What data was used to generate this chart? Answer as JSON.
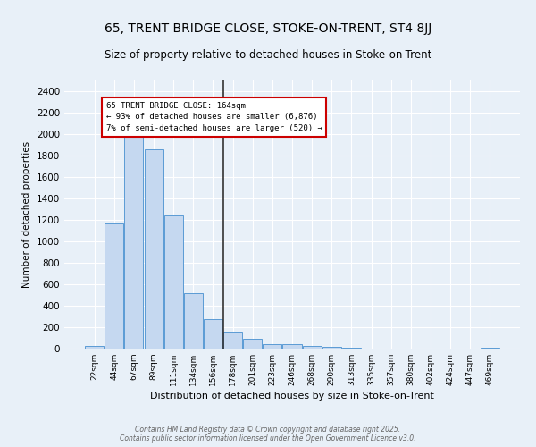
{
  "title": "65, TRENT BRIDGE CLOSE, STOKE-ON-TRENT, ST4 8JJ",
  "subtitle": "Size of property relative to detached houses in Stoke-on-Trent",
  "xlabel": "Distribution of detached houses by size in Stoke-on-Trent",
  "ylabel": "Number of detached properties",
  "categories": [
    "22sqm",
    "44sqm",
    "67sqm",
    "89sqm",
    "111sqm",
    "134sqm",
    "156sqm",
    "178sqm",
    "201sqm",
    "223sqm",
    "246sqm",
    "268sqm",
    "290sqm",
    "313sqm",
    "335sqm",
    "357sqm",
    "380sqm",
    "402sqm",
    "424sqm",
    "447sqm",
    "469sqm"
  ],
  "values": [
    25,
    1170,
    2000,
    1860,
    1245,
    520,
    275,
    155,
    95,
    45,
    40,
    25,
    15,
    5,
    3,
    2,
    2,
    2,
    1,
    1,
    5
  ],
  "bar_color": "#c5d8f0",
  "bar_edge_color": "#5b9bd5",
  "vline_index": 6.5,
  "vline_color": "#333333",
  "annotation_text": "65 TRENT BRIDGE CLOSE: 164sqm\n← 93% of detached houses are smaller (6,876)\n7% of semi-detached houses are larger (520) →",
  "annotation_box_color": "#ffffff",
  "annotation_box_edge": "#cc0000",
  "ylim": [
    0,
    2500
  ],
  "yticks": [
    0,
    200,
    400,
    600,
    800,
    1000,
    1200,
    1400,
    1600,
    1800,
    2000,
    2200,
    2400
  ],
  "background_color": "#e8f0f8",
  "footer_line1": "Contains HM Land Registry data © Crown copyright and database right 2025.",
  "footer_line2": "Contains public sector information licensed under the Open Government Licence v3.0."
}
